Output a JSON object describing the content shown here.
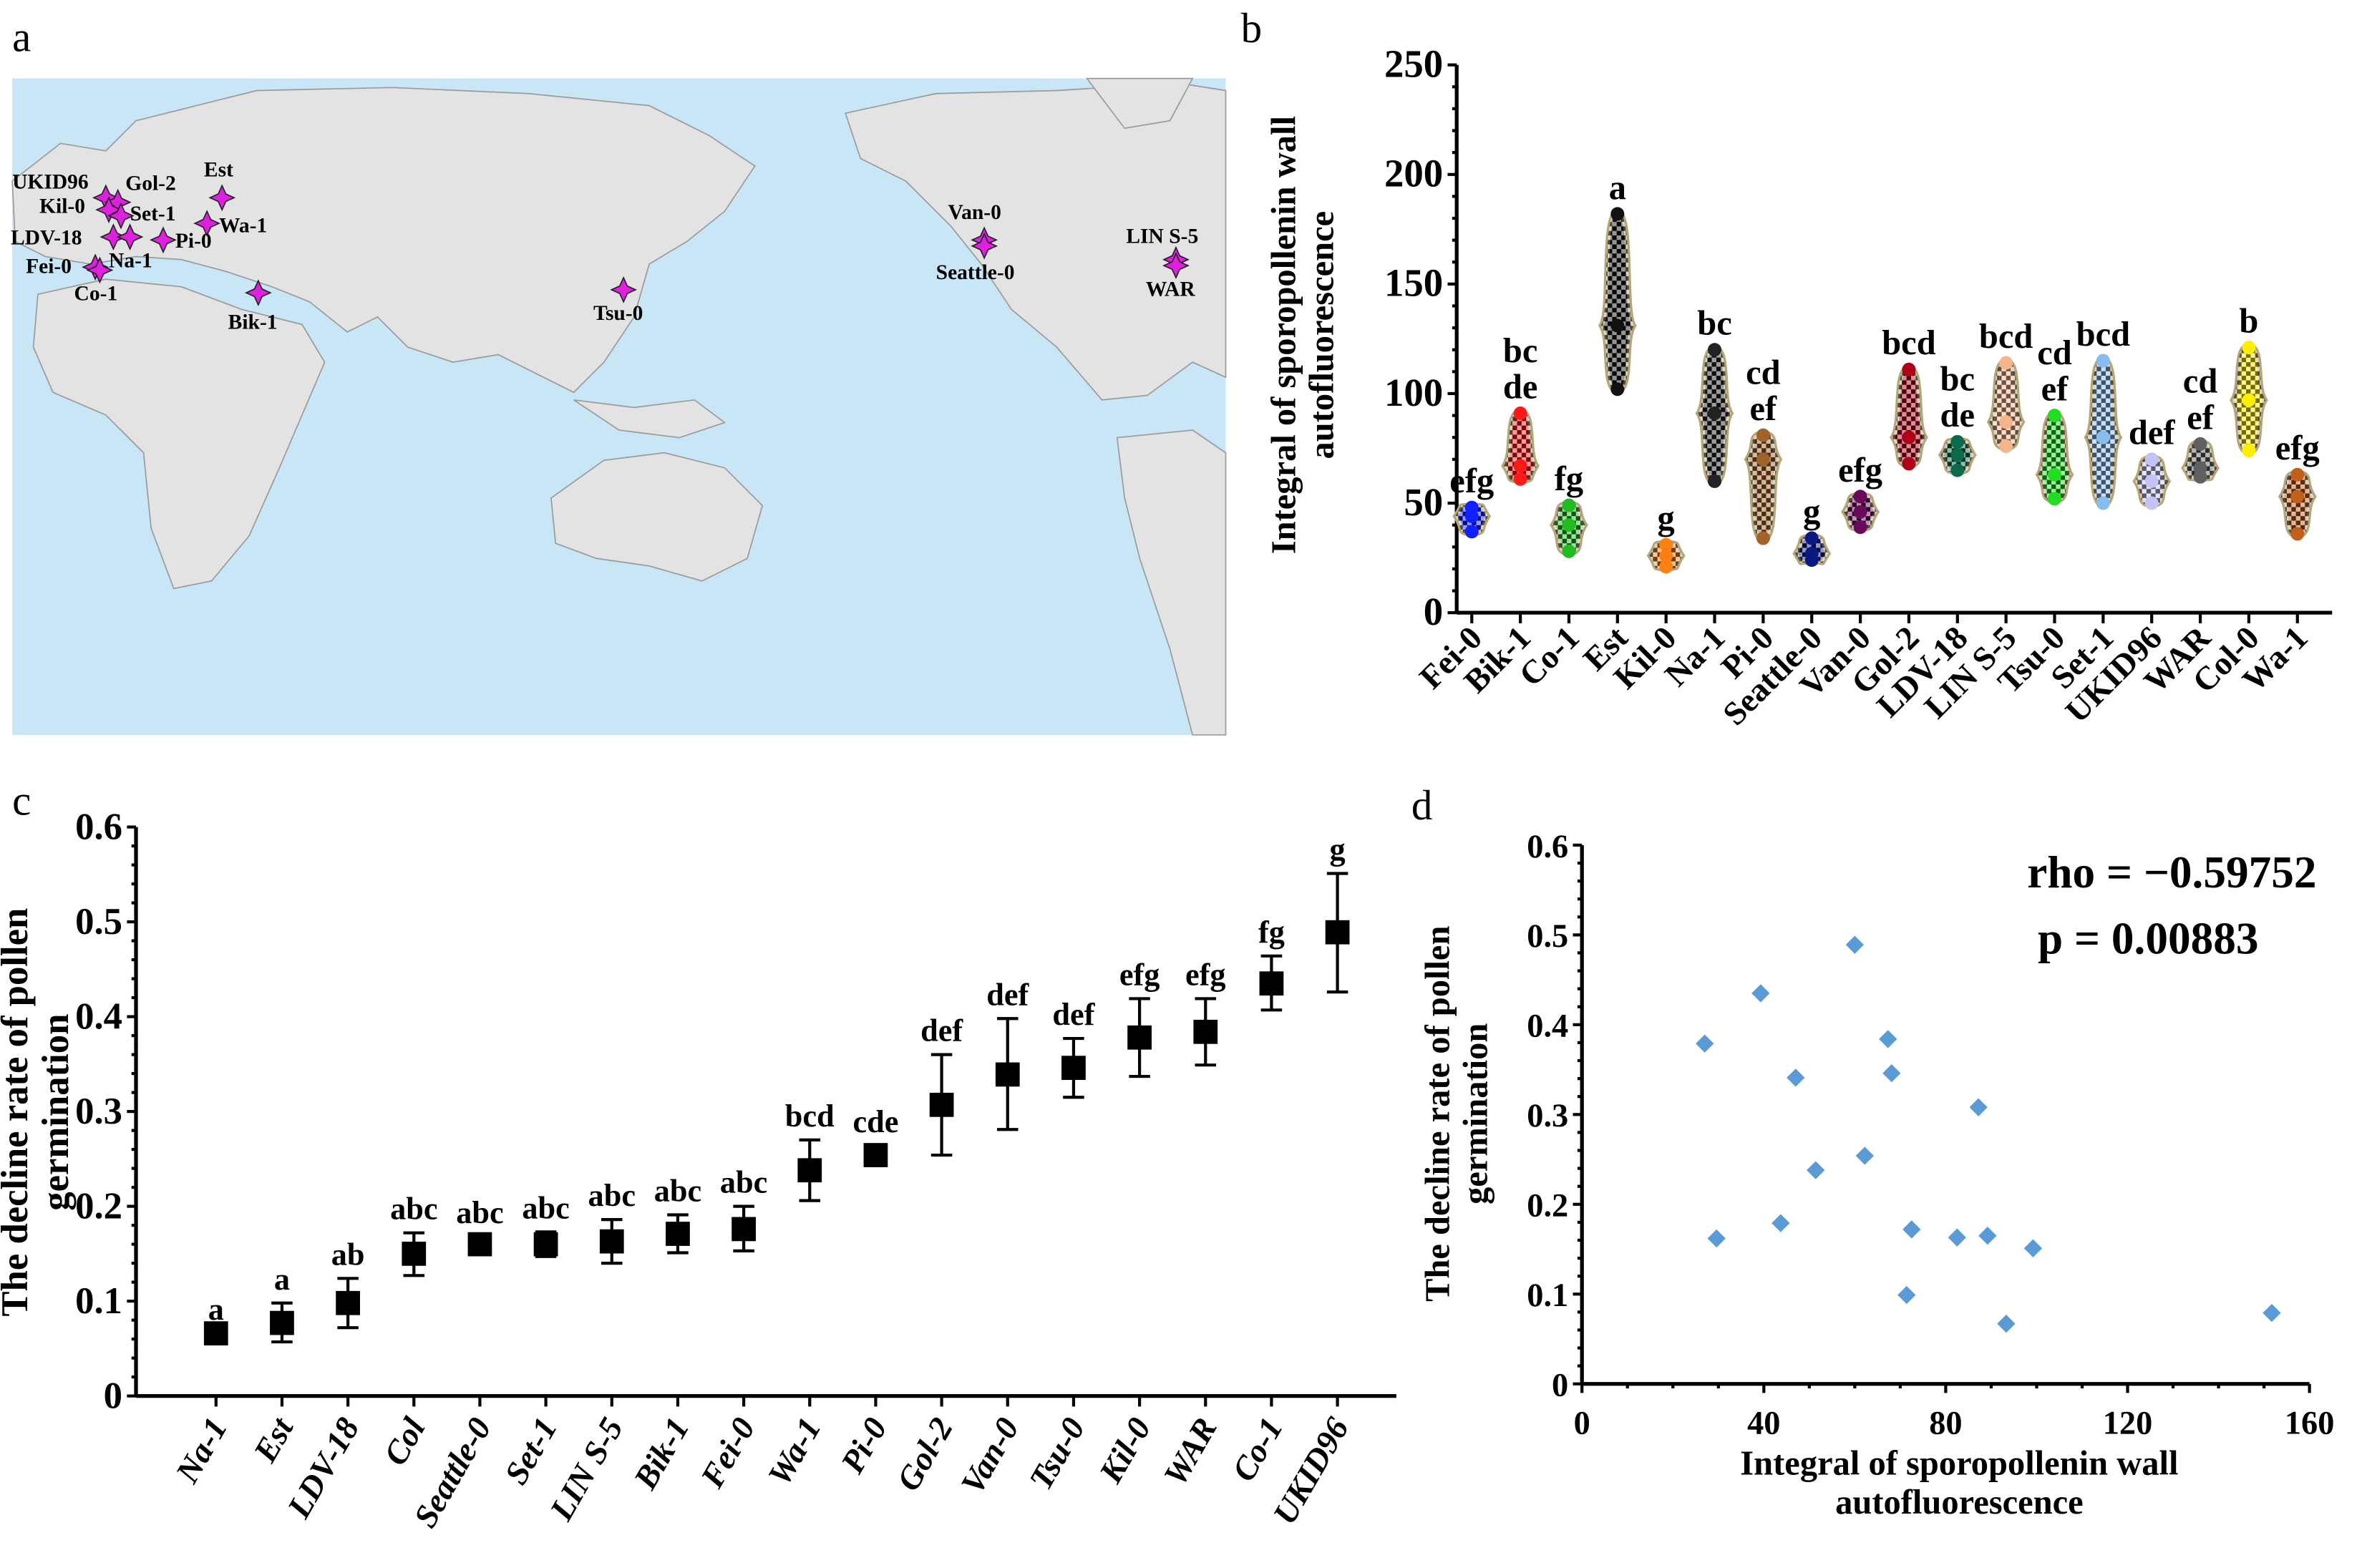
{
  "panels": {
    "a": "a",
    "b": "b",
    "c": "c",
    "d": "d"
  },
  "colors": {
    "ocean": "#c8e6f5",
    "land": "#e3e3e3",
    "border": "#9a9a9a",
    "marker": "#e020e0",
    "violin_outline": "#b5a57a",
    "scatter": "#5b9bd5"
  },
  "map": {
    "markers": [
      {
        "label": "UKID96",
        "icon": "four-point-star-icon"
      },
      {
        "label": "Gol-2",
        "icon": "four-point-star-icon"
      },
      {
        "label": "Kil-0",
        "icon": "four-point-star-icon"
      },
      {
        "label": "Set-1",
        "icon": "four-point-star-icon"
      },
      {
        "label": "Est",
        "icon": "four-point-star-icon"
      },
      {
        "label": "Wa-1",
        "icon": "four-point-star-icon"
      },
      {
        "label": "LDV-18",
        "icon": "four-point-star-icon"
      },
      {
        "label": "Na-1",
        "icon": "four-point-star-icon"
      },
      {
        "label": "Pi-0",
        "icon": "four-point-star-icon"
      },
      {
        "label": "Fei-0",
        "icon": "four-point-star-icon"
      },
      {
        "label": "Co-1",
        "icon": "four-point-star-icon"
      },
      {
        "label": "Bik-1",
        "icon": "four-point-star-icon"
      },
      {
        "label": "Tsu-0",
        "icon": "four-point-star-icon"
      },
      {
        "label": "Van-0",
        "icon": "four-point-star-icon"
      },
      {
        "label": "Seattle-0",
        "icon": "four-point-star-icon"
      },
      {
        "label": "LIN S-5",
        "icon": "four-point-star-icon"
      },
      {
        "label": "WAR",
        "icon": "four-point-star-icon"
      }
    ]
  },
  "chart_data": [
    {
      "panel": "b",
      "type": "violin",
      "ylabel": [
        "Integral of sporopollenin wall",
        "autofluorescence"
      ],
      "ylim": [
        0,
        250
      ],
      "yticks": [
        0,
        50,
        100,
        150,
        200,
        250
      ],
      "categories": [
        {
          "name": "Fei-0",
          "min": 37,
          "max": 48,
          "median": 44,
          "color": "#1020ff",
          "letters": [
            "efg"
          ]
        },
        {
          "name": "Bik-1",
          "min": 61,
          "max": 91,
          "median": 67,
          "color": "#ff1a1a",
          "letters": [
            "bc",
            "de"
          ]
        },
        {
          "name": "Co-1",
          "min": 28,
          "max": 49,
          "median": 40,
          "color": "#22bb22",
          "letters": [
            "fg"
          ]
        },
        {
          "name": "Est",
          "min": 102,
          "max": 182,
          "median": 131,
          "color": "#111111",
          "letters": [
            "a"
          ]
        },
        {
          "name": "Kil-0",
          "min": 21,
          "max": 31,
          "median": 26,
          "color": "#ff8010",
          "letters": [
            "g"
          ]
        },
        {
          "name": "Na-1",
          "min": 60,
          "max": 120,
          "median": 91,
          "color": "#222222",
          "letters": [
            "bc"
          ]
        },
        {
          "name": "Pi-0",
          "min": 34,
          "max": 81,
          "median": 70,
          "color": "#a0642a",
          "letters": [
            "cd",
            "ef"
          ]
        },
        {
          "name": "Seattle-0",
          "min": 24,
          "max": 34,
          "median": 27,
          "color": "#0a1a80",
          "letters": [
            "g"
          ]
        },
        {
          "name": "Van-0",
          "min": 39,
          "max": 53,
          "median": 46,
          "color": "#6a0a5a",
          "letters": [
            "efg"
          ]
        },
        {
          "name": "Gol-2",
          "min": 68,
          "max": 111,
          "median": 80,
          "color": "#b00018",
          "letters": [
            "bcd"
          ]
        },
        {
          "name": "LDV-18",
          "min": 65,
          "max": 78,
          "median": 72,
          "color": "#0a6a4a",
          "letters": [
            "bc",
            "de"
          ]
        },
        {
          "name": "LIN S-5",
          "min": 76,
          "max": 114,
          "median": 87,
          "color": "#f5b58a",
          "letters": [
            "bcd"
          ]
        },
        {
          "name": "Tsu-0",
          "min": 52,
          "max": 90,
          "median": 63,
          "color": "#22dd22",
          "letters": [
            "cd",
            "ef"
          ]
        },
        {
          "name": "Set-1",
          "min": 50,
          "max": 115,
          "median": 80,
          "color": "#88bbee",
          "letters": [
            "bcd"
          ]
        },
        {
          "name": "UKID96",
          "min": 50,
          "max": 70,
          "median": 60,
          "color": "#c4c4f4",
          "letters": [
            "def"
          ]
        },
        {
          "name": "WAR",
          "min": 62,
          "max": 77,
          "median": 66,
          "color": "#606060",
          "letters": [
            "cd",
            "ef"
          ]
        },
        {
          "name": "Col-0",
          "min": 74,
          "max": 121,
          "median": 97,
          "color": "#ffee00",
          "letters": [
            "b"
          ]
        },
        {
          "name": "Wa-1",
          "min": 36,
          "max": 63,
          "median": 53,
          "color": "#c0601a",
          "letters": [
            "efg"
          ]
        }
      ]
    },
    {
      "panel": "c",
      "type": "errorbar",
      "ylabel": [
        "The decline rate of pollen",
        "germination"
      ],
      "ylim": [
        0,
        0.6
      ],
      "yticks": [
        0,
        0.1,
        0.2,
        0.3,
        0.4,
        0.5,
        0.6
      ],
      "points": [
        {
          "name": "Na-1",
          "value": 0.066,
          "low": 0.066,
          "high": 0.066,
          "letters": "a"
        },
        {
          "name": "Est",
          "value": 0.077,
          "low": 0.057,
          "high": 0.098,
          "letters": "a"
        },
        {
          "name": "LDV-18",
          "value": 0.098,
          "low": 0.072,
          "high": 0.124,
          "letters": "ab"
        },
        {
          "name": "Col",
          "value": 0.15,
          "low": 0.127,
          "high": 0.172,
          "letters": "abc"
        },
        {
          "name": "Seattle-0",
          "value": 0.16,
          "low": 0.152,
          "high": 0.168,
          "letters": "abc"
        },
        {
          "name": "Set-1",
          "value": 0.16,
          "low": 0.147,
          "high": 0.173,
          "letters": "abc"
        },
        {
          "name": "LIN S-5",
          "value": 0.163,
          "low": 0.14,
          "high": 0.186,
          "letters": "abc"
        },
        {
          "name": "Bik-1",
          "value": 0.171,
          "low": 0.151,
          "high": 0.191,
          "letters": "abc"
        },
        {
          "name": "Fei-0",
          "value": 0.176,
          "low": 0.153,
          "high": 0.2,
          "letters": "abc"
        },
        {
          "name": "Wa-1",
          "value": 0.238,
          "low": 0.206,
          "high": 0.27,
          "letters": "bcd"
        },
        {
          "name": "Pi-0",
          "value": 0.254,
          "low": 0.243,
          "high": 0.264,
          "letters": "cde"
        },
        {
          "name": "Gol-2",
          "value": 0.307,
          "low": 0.254,
          "high": 0.36,
          "letters": "def"
        },
        {
          "name": "Van-0",
          "value": 0.339,
          "low": 0.281,
          "high": 0.398,
          "letters": "def"
        },
        {
          "name": "Tsu-0",
          "value": 0.346,
          "low": 0.315,
          "high": 0.377,
          "letters": "def"
        },
        {
          "name": "Kil-0",
          "value": 0.378,
          "low": 0.337,
          "high": 0.419,
          "letters": "efg"
        },
        {
          "name": "WAR",
          "value": 0.384,
          "low": 0.349,
          "high": 0.419,
          "letters": "efg"
        },
        {
          "name": "Co-1",
          "value": 0.435,
          "low": 0.407,
          "high": 0.464,
          "letters": "fg"
        },
        {
          "name": "UKID96",
          "value": 0.489,
          "low": 0.426,
          "high": 0.551,
          "letters": "g"
        }
      ]
    },
    {
      "panel": "d",
      "type": "scatter",
      "xlabel": [
        "Integral of sporopollenin wall",
        "autofluorescence"
      ],
      "ylabel": [
        "The decline rate of pollen",
        "germination"
      ],
      "xlim": [
        0,
        160
      ],
      "ylim": [
        0,
        0.6
      ],
      "xticks": [
        0,
        40,
        80,
        120,
        160
      ],
      "yticks": [
        0,
        0.1,
        0.2,
        0.3,
        0.4,
        0.5,
        0.6
      ],
      "annotations": [
        "rho = −0.59752",
        "p = 0.00883"
      ],
      "points": [
        [
          27,
          0.379
        ],
        [
          29.6,
          0.162
        ],
        [
          39.3,
          0.435
        ],
        [
          43.7,
          0.179
        ],
        [
          47,
          0.341
        ],
        [
          51.4,
          0.238
        ],
        [
          60,
          0.489
        ],
        [
          62.2,
          0.254
        ],
        [
          67.3,
          0.384
        ],
        [
          68.1,
          0.346
        ],
        [
          71.4,
          0.099
        ],
        [
          72.5,
          0.172
        ],
        [
          82.5,
          0.163
        ],
        [
          87.2,
          0.308
        ],
        [
          89.2,
          0.165
        ],
        [
          93.3,
          0.067
        ],
        [
          99.2,
          0.151
        ],
        [
          151.7,
          0.079
        ]
      ]
    }
  ]
}
